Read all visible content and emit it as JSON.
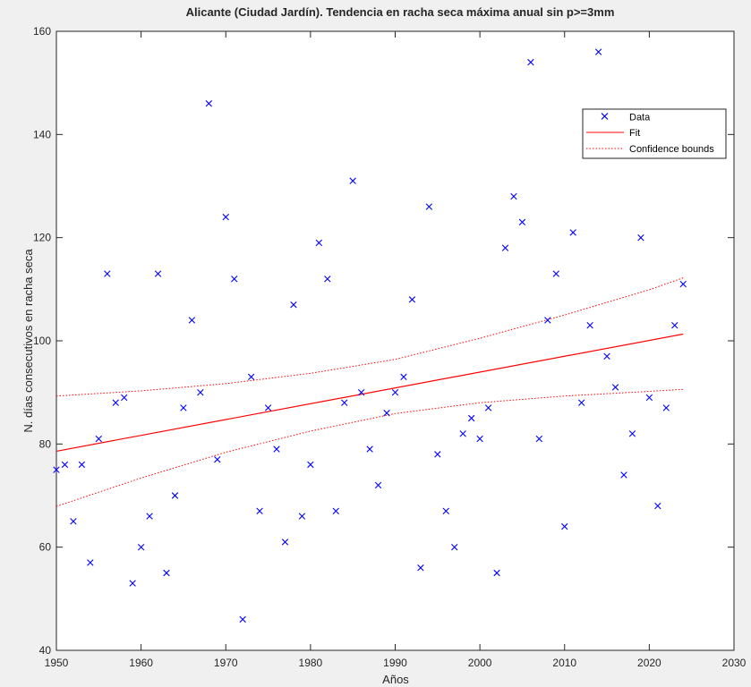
{
  "chart_data": {
    "type": "scatter",
    "title": "Alicante (Ciudad Jardín). Tendencia en racha seca máxima anual sin p>=3mm",
    "xlabel": "Años",
    "ylabel": "N. días consecutivos en racha seca",
    "xlim": [
      1950,
      2030
    ],
    "ylim": [
      40,
      160
    ],
    "xticks": [
      1950,
      1960,
      1970,
      1980,
      1990,
      2000,
      2010,
      2020,
      2030
    ],
    "yticks": [
      40,
      60,
      80,
      100,
      120,
      140,
      160
    ],
    "grid": false,
    "legend": {
      "placement": "top-right",
      "entries": [
        "Data",
        "Fit",
        "Confidence bounds"
      ]
    },
    "colors": {
      "data": "#0000ff",
      "fit": "#ff0000",
      "bounds": "#ff0000"
    },
    "series": [
      {
        "name": "Data",
        "kind": "scatter",
        "x": [
          1950,
          1951,
          1952,
          1953,
          1954,
          1955,
          1956,
          1957,
          1958,
          1959,
          1960,
          1961,
          1962,
          1963,
          1964,
          1965,
          1966,
          1967,
          1968,
          1969,
          1970,
          1971,
          1972,
          1973,
          1974,
          1975,
          1976,
          1977,
          1978,
          1979,
          1980,
          1981,
          1982,
          1983,
          1984,
          1985,
          1986,
          1987,
          1988,
          1989,
          1990,
          1991,
          1992,
          1993,
          1994,
          1995,
          1996,
          1997,
          1998,
          1999,
          2000,
          2001,
          2002,
          2003,
          2004,
          2005,
          2006,
          2007,
          2008,
          2009,
          2010,
          2011,
          2012,
          2013,
          2014,
          2015,
          2016,
          2017,
          2018,
          2019,
          2020,
          2021,
          2022,
          2023,
          2024
        ],
        "y": [
          75,
          76,
          65,
          76,
          57,
          81,
          113,
          88,
          89,
          53,
          60,
          66,
          113,
          55,
          70,
          87,
          104,
          90,
          146,
          77,
          124,
          112,
          46,
          93,
          67,
          87,
          79,
          61,
          107,
          66,
          76,
          119,
          112,
          67,
          88,
          131,
          90,
          79,
          72,
          86,
          90,
          93,
          108,
          56,
          126,
          78,
          67,
          60,
          82,
          85,
          81,
          87,
          55,
          118,
          128,
          123,
          154,
          81,
          104,
          113,
          64,
          121,
          88,
          103,
          156,
          97,
          91,
          74,
          82,
          120,
          89,
          68,
          87,
          103,
          111
        ]
      },
      {
        "name": "Fit",
        "kind": "line",
        "x": [
          1950,
          2024
        ],
        "y": [
          78.6,
          101.3
        ]
      },
      {
        "name": "Confidence bounds",
        "kind": "dotted-line",
        "upper": {
          "x": [
            1950,
            1960,
            1970,
            1980,
            1990,
            2000,
            2010,
            2020,
            2024
          ],
          "y": [
            89.3,
            90.3,
            91.7,
            93.7,
            96.4,
            100.5,
            105.0,
            109.9,
            112.2
          ]
        },
        "lower": {
          "x": [
            1950,
            1960,
            1970,
            1980,
            1990,
            2000,
            2010,
            2020,
            2024
          ],
          "y": [
            67.9,
            73.4,
            78.4,
            82.5,
            85.9,
            88.0,
            89.3,
            90.2,
            90.6
          ]
        }
      }
    ]
  }
}
